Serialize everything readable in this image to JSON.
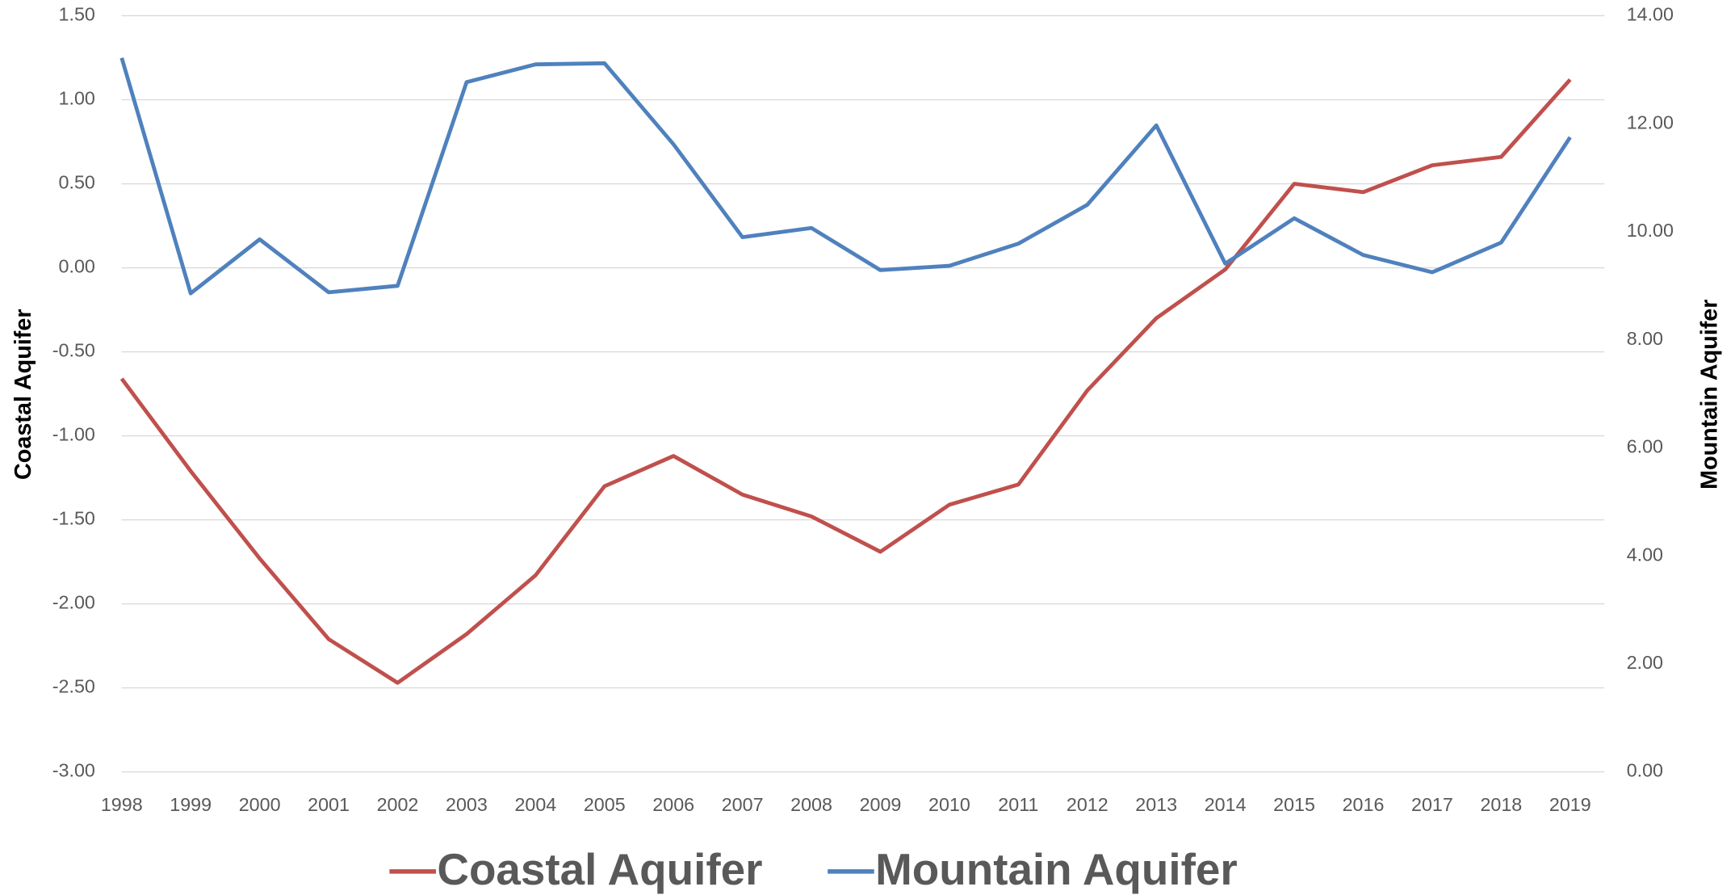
{
  "chart_data": {
    "type": "line",
    "categories": [
      "1998",
      "1999",
      "2000",
      "2001",
      "2002",
      "2003",
      "2004",
      "2005",
      "2006",
      "2007",
      "2008",
      "2009",
      "2010",
      "2011",
      "2012",
      "2013",
      "2014",
      "2015",
      "2016",
      "2017",
      "2018",
      "2019"
    ],
    "series": [
      {
        "name": "Coastal Aquifer",
        "color": "#c0504d",
        "values": [
          -0.66,
          -1.21,
          -1.73,
          -2.21,
          -2.47,
          -2.18,
          -1.83,
          -1.3,
          -1.12,
          -1.35,
          -1.48,
          -1.69,
          -1.41,
          -1.29,
          -0.73,
          -0.3,
          -0.01,
          0.5,
          0.45,
          0.61,
          0.66,
          1.12
        ]
      },
      {
        "name": "Mountain Aquifer",
        "color": "#4f81bd",
        "axis": "y2",
        "values": [
          13.22,
          8.86,
          9.86,
          8.88,
          9.0,
          12.77,
          13.1,
          13.12,
          11.62,
          9.9,
          10.07,
          9.29,
          9.37,
          9.78,
          10.5,
          11.97,
          9.41,
          10.25,
          9.57,
          9.25,
          9.8,
          11.75
        ]
      }
    ],
    "ylabel": "Coastal Aquifer",
    "y2label": "Mountain Aquifer",
    "ylim": [
      -3,
      1.5
    ],
    "yticks": [
      {
        "value": -3,
        "label": "-3.00"
      },
      {
        "value": -2.5,
        "label": "-2.50"
      },
      {
        "value": -2,
        "label": "-2.00"
      },
      {
        "value": -1.5,
        "label": "-1.50"
      },
      {
        "value": -1,
        "label": "-1.00"
      },
      {
        "value": -0.5,
        "label": "-0.50"
      },
      {
        "value": 0,
        "label": "0.00"
      },
      {
        "value": 0.5,
        "label": "0.50"
      },
      {
        "value": 1,
        "label": "1.00"
      },
      {
        "value": 1.5,
        "label": "1.50"
      }
    ],
    "y2lim": [
      0,
      14
    ],
    "y2ticks": [
      {
        "value": 0,
        "label": "0.00"
      },
      {
        "value": 2,
        "label": "2.00"
      },
      {
        "value": 4,
        "label": "4.00"
      },
      {
        "value": 6,
        "label": "6.00"
      },
      {
        "value": 8,
        "label": "8.00"
      },
      {
        "value": 10,
        "label": "10.00"
      },
      {
        "value": 12,
        "label": "12.00"
      },
      {
        "value": 14,
        "label": "14.00"
      }
    ],
    "grid": true,
    "legend": "bottom"
  }
}
